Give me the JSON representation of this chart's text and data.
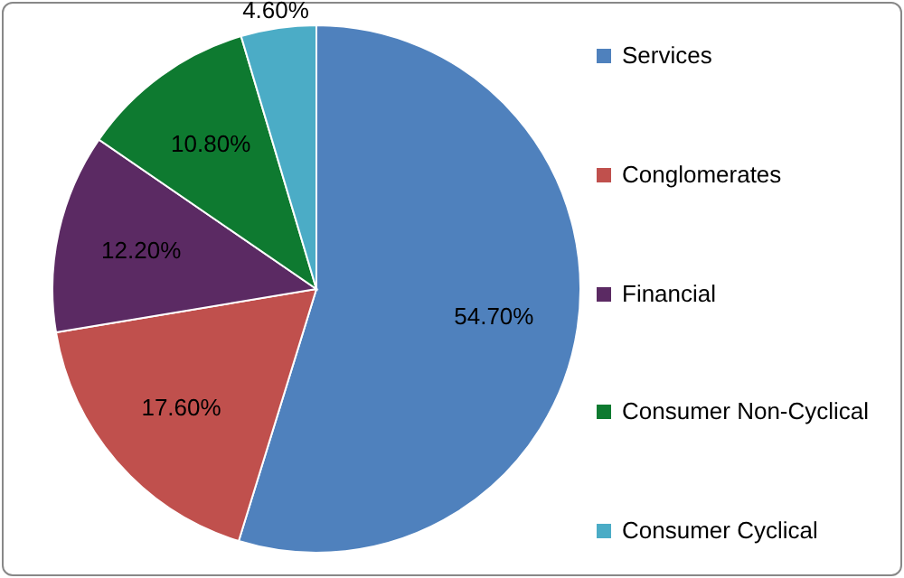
{
  "chart_data": {
    "type": "pie",
    "categories": [
      "Services",
      "Conglomerates",
      "Financial",
      "Consumer Non-Cyclical",
      "Consumer Cyclical"
    ],
    "values": [
      54.7,
      17.6,
      12.2,
      10.8,
      4.6
    ],
    "colors": [
      "#4f81bd",
      "#c0504d",
      "#5b2a63",
      "#0e7a30",
      "#4bacc6"
    ],
    "value_labels": [
      "54.70%",
      "17.60%",
      "12.20%",
      "10.80%",
      "4.60%"
    ],
    "legend": "right"
  }
}
